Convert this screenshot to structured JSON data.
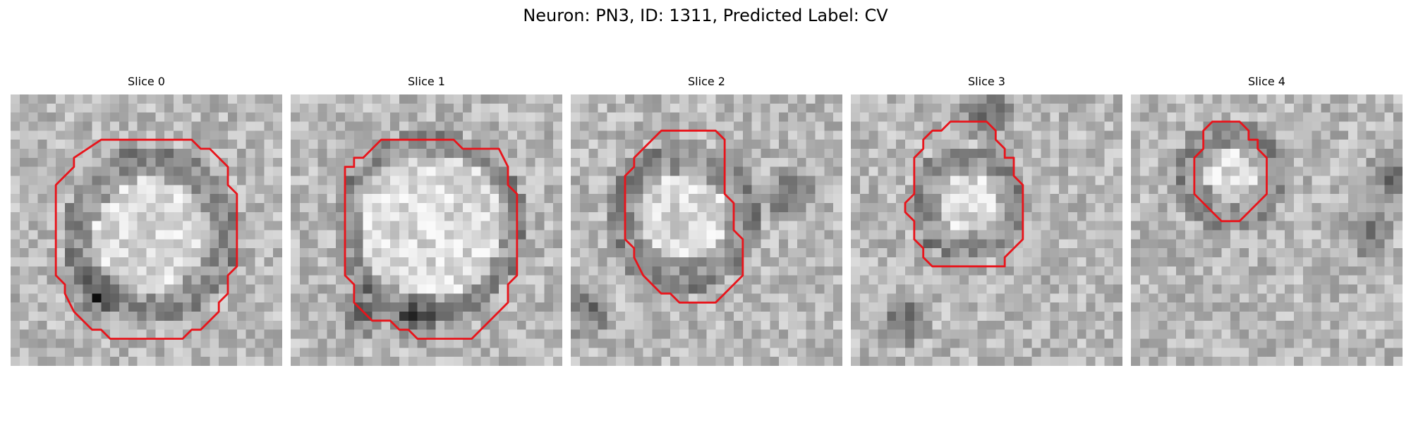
{
  "figure": {
    "title": "Neuron: PN3, ID: 1311, Predicted Label: CV"
  },
  "contour_color": "#e8141b",
  "grid_size": 30,
  "slices": [
    {
      "title": "Slice 0",
      "outline": [
        [
          11,
          5
        ],
        [
          20,
          5
        ],
        [
          21,
          6
        ],
        [
          22,
          6
        ],
        [
          24,
          8
        ],
        [
          24,
          10
        ],
        [
          25,
          11
        ],
        [
          25,
          19
        ],
        [
          24,
          20
        ],
        [
          24,
          22
        ],
        [
          23,
          23
        ],
        [
          23,
          24
        ],
        [
          21,
          26
        ],
        [
          20,
          26
        ],
        [
          19,
          27
        ],
        [
          11,
          27
        ],
        [
          10,
          26
        ],
        [
          9,
          26
        ],
        [
          7,
          24
        ],
        [
          6,
          22
        ],
        [
          6,
          21
        ],
        [
          5,
          20
        ],
        [
          5,
          10
        ],
        [
          7,
          8
        ],
        [
          7,
          7
        ],
        [
          10,
          5
        ]
      ]
    },
    {
      "title": "Slice 1",
      "outline": [
        [
          12,
          5
        ],
        [
          18,
          5
        ],
        [
          19,
          6
        ],
        [
          23,
          6
        ],
        [
          24,
          8
        ],
        [
          24,
          10
        ],
        [
          25,
          11
        ],
        [
          25,
          20
        ],
        [
          24,
          21
        ],
        [
          24,
          23
        ],
        [
          22,
          25
        ],
        [
          21,
          26
        ],
        [
          20,
          27
        ],
        [
          14,
          27
        ],
        [
          13,
          26
        ],
        [
          12,
          26
        ],
        [
          11,
          25
        ],
        [
          9,
          25
        ],
        [
          8,
          24
        ],
        [
          7,
          23
        ],
        [
          7,
          21
        ],
        [
          6,
          20
        ],
        [
          6,
          8
        ],
        [
          7,
          8
        ],
        [
          7,
          7
        ],
        [
          8,
          7
        ],
        [
          10,
          5
        ]
      ]
    },
    {
      "title": "Slice 2",
      "outline": [
        [
          11,
          4
        ],
        [
          16,
          4
        ],
        [
          17,
          5
        ],
        [
          17,
          11
        ],
        [
          18,
          12
        ],
        [
          18,
          15
        ],
        [
          19,
          16
        ],
        [
          19,
          20
        ],
        [
          17,
          22
        ],
        [
          16,
          23
        ],
        [
          12,
          23
        ],
        [
          11,
          22
        ],
        [
          10,
          22
        ],
        [
          8,
          20
        ],
        [
          7,
          18
        ],
        [
          7,
          17
        ],
        [
          6,
          16
        ],
        [
          6,
          9
        ],
        [
          7,
          8
        ],
        [
          7,
          7
        ],
        [
          8,
          6
        ],
        [
          10,
          4
        ]
      ]
    },
    {
      "title": "Slice 3",
      "outline": [
        [
          11,
          3
        ],
        [
          15,
          3
        ],
        [
          16,
          4
        ],
        [
          16,
          5
        ],
        [
          17,
          6
        ],
        [
          17,
          7
        ],
        [
          18,
          7
        ],
        [
          18,
          9
        ],
        [
          19,
          10
        ],
        [
          19,
          16
        ],
        [
          17,
          18
        ],
        [
          17,
          19
        ],
        [
          9,
          19
        ],
        [
          8,
          18
        ],
        [
          8,
          17
        ],
        [
          7,
          16
        ],
        [
          7,
          14
        ],
        [
          6,
          13
        ],
        [
          6,
          12
        ],
        [
          7,
          11
        ],
        [
          7,
          7
        ],
        [
          8,
          6
        ],
        [
          8,
          5
        ],
        [
          9,
          4
        ],
        [
          10,
          4
        ]
      ]
    },
    {
      "title": "Slice 4",
      "outline": [
        [
          9,
          3
        ],
        [
          12,
          3
        ],
        [
          13,
          4
        ],
        [
          13,
          5
        ],
        [
          14,
          5
        ],
        [
          14,
          6
        ],
        [
          15,
          7
        ],
        [
          15,
          11
        ],
        [
          14,
          12
        ],
        [
          13,
          13
        ],
        [
          12,
          14
        ],
        [
          10,
          14
        ],
        [
          9,
          13
        ],
        [
          7,
          11
        ],
        [
          7,
          7
        ],
        [
          8,
          6
        ],
        [
          8,
          4
        ]
      ]
    }
  ]
}
